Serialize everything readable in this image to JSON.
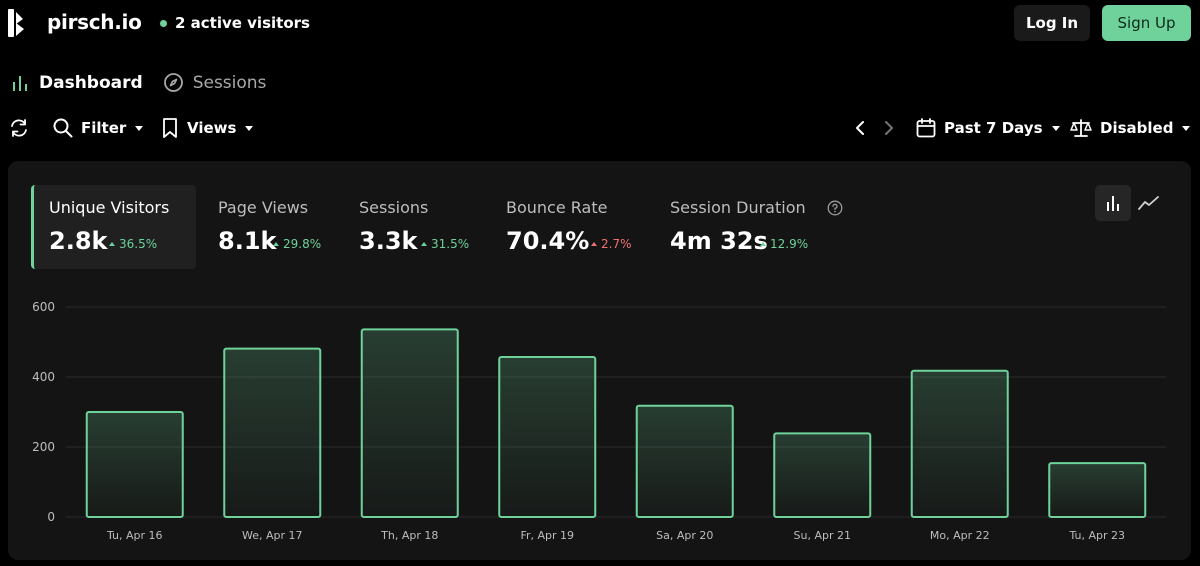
{
  "header": {
    "brand": "pirsch.io",
    "active_visitors": "2 active visitors",
    "login_label": "Log In",
    "signup_label": "Sign Up"
  },
  "nav": {
    "dashboard": "Dashboard",
    "sessions": "Sessions"
  },
  "toolbar": {
    "filter_label": "Filter",
    "views_label": "Views",
    "period_label": "Past 7 Days",
    "comparison_label": "Disabled"
  },
  "metrics": [
    {
      "label": "Unique Visitors",
      "value": "2.8k",
      "change": "36.5%",
      "trend": "up"
    },
    {
      "label": "Page Views",
      "value": "8.1k",
      "change": "29.8%",
      "trend": "up"
    },
    {
      "label": "Sessions",
      "value": "3.3k",
      "change": "31.5%",
      "trend": "up"
    },
    {
      "label": "Bounce Rate",
      "value": "70.4%",
      "change": "2.7%",
      "trend": "up-negative"
    },
    {
      "label": "Session Duration",
      "value": "4m 32s",
      "change": "12.9%",
      "trend": "up"
    }
  ],
  "colors": {
    "accent": "#6fd29b",
    "negative": "#f07070",
    "panel": "#141414",
    "background": "#000000"
  },
  "chart_data": {
    "type": "bar",
    "categories": [
      "Tu, Apr 16",
      "We, Apr 17",
      "Th, Apr 18",
      "Fr, Apr 19",
      "Sa, Apr 20",
      "Su, Apr 21",
      "Mo, Apr 22",
      "Tu, Apr 23"
    ],
    "values": [
      300,
      481,
      536,
      457,
      318,
      239,
      418,
      154
    ],
    "yticks": [
      0,
      200,
      400,
      600
    ],
    "ylim": [
      0,
      600
    ],
    "grid": true
  }
}
